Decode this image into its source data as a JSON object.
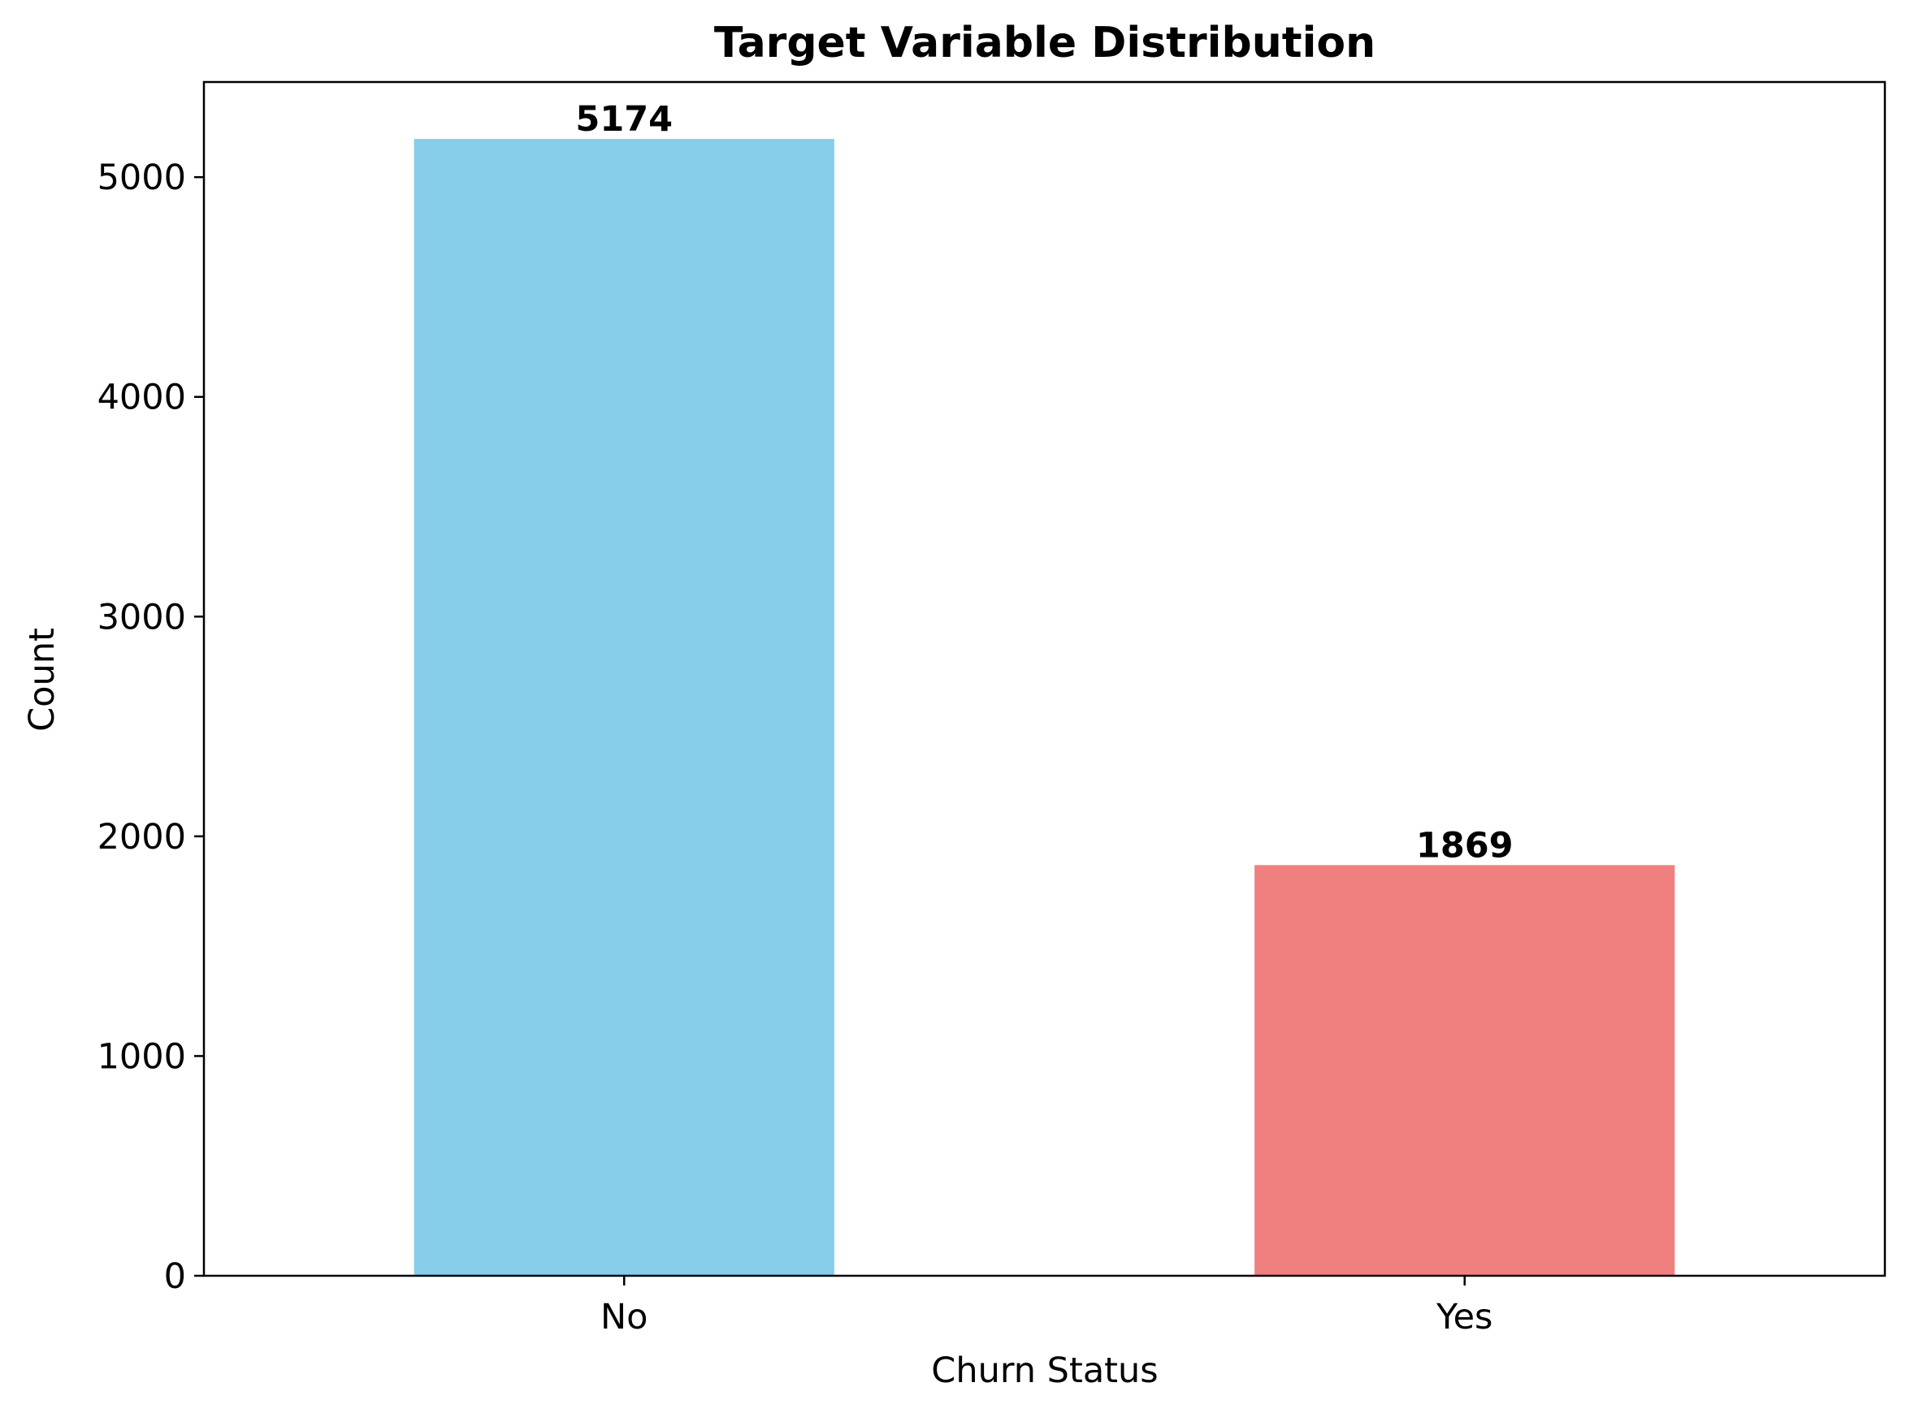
{
  "chart_data": {
    "type": "bar",
    "title": "Target Variable Distribution",
    "xlabel": "Churn Status",
    "ylabel": "Count",
    "categories": [
      "No",
      "Yes"
    ],
    "values": [
      5174,
      1869
    ],
    "value_labels": [
      "5174",
      "1869"
    ],
    "colors": [
      "#87ceeb",
      "#f08080"
    ],
    "ylim": [
      0,
      5433
    ],
    "yticks": [
      0,
      1000,
      2000,
      3000,
      4000,
      5000
    ],
    "ytick_labels": [
      "0",
      "1000",
      "2000",
      "3000",
      "4000",
      "5000"
    ],
    "grid": false,
    "legend": "none"
  }
}
